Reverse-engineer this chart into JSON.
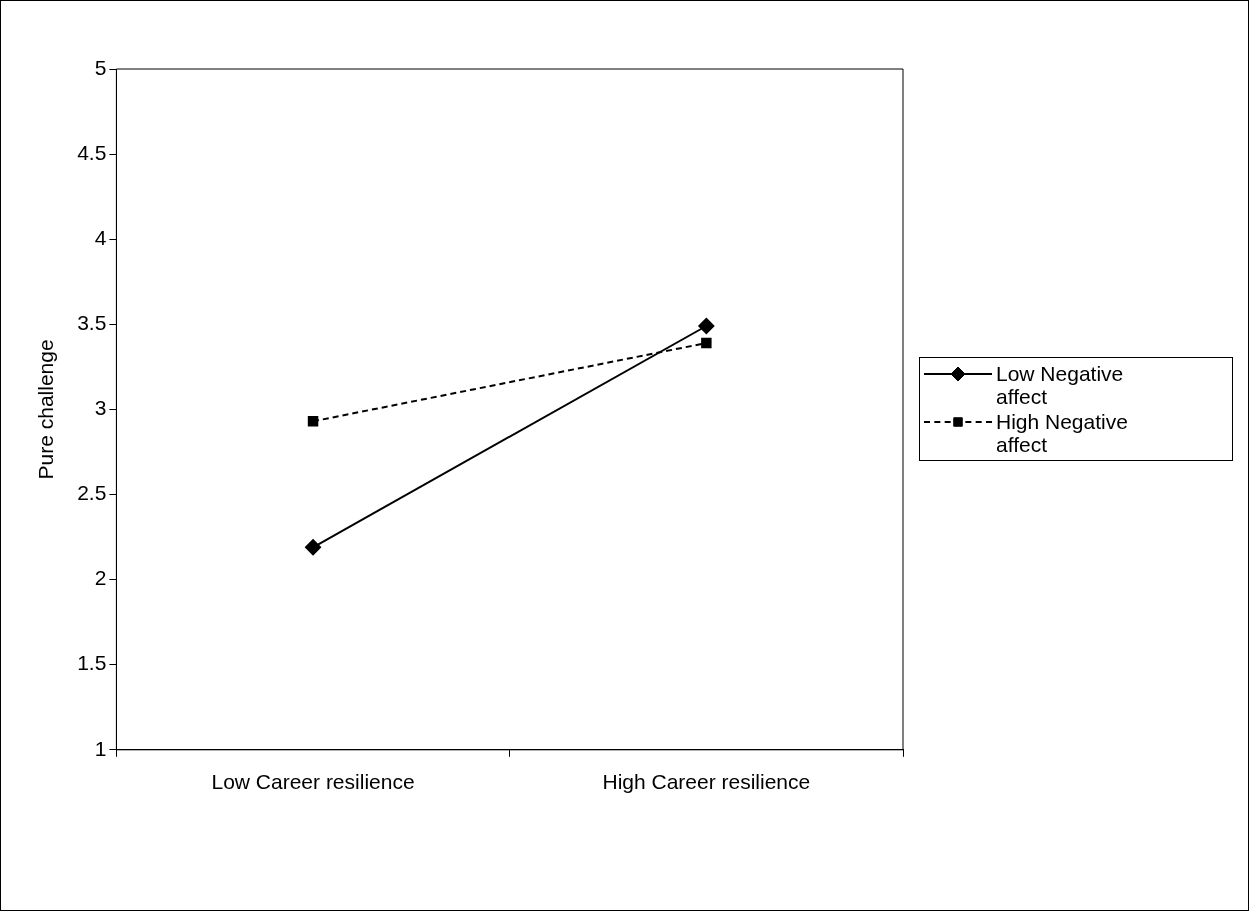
{
  "chart_data": {
    "type": "line",
    "ylabel": "Pure challenge",
    "categories": [
      "Low Career resilience",
      "High Career resilience"
    ],
    "ylim": [
      1,
      5
    ],
    "yticks": [
      1,
      1.5,
      2,
      2.5,
      3,
      3.5,
      4,
      4.5,
      5
    ],
    "grid": false,
    "legend": "right",
    "series": [
      {
        "name": "Low Negative affect",
        "color": "#000000",
        "values": [
          2.19,
          3.49
        ],
        "marker": "diamond",
        "line_style": "solid"
      },
      {
        "name": "High Negative affect",
        "color": "#000000",
        "values": [
          2.93,
          3.39
        ],
        "marker": "square",
        "line_style": "dashed"
      }
    ]
  }
}
